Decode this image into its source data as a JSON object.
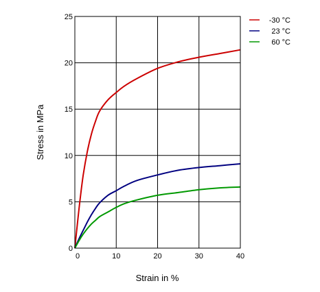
{
  "chart_data": {
    "type": "line",
    "title": "",
    "xlabel": "Strain in %",
    "ylabel": "Stress in MPa",
    "xlim": [
      0,
      40
    ],
    "ylim": [
      0,
      25
    ],
    "xticks": [
      0,
      10,
      20,
      30,
      40
    ],
    "yticks": [
      0,
      5,
      10,
      15,
      20,
      25
    ],
    "xtick_labels": [
      "0",
      "10",
      "20",
      "30",
      "40"
    ],
    "ytick_labels": [
      "0",
      "5",
      "10",
      "15",
      "20",
      "25"
    ],
    "grid": true,
    "legend_position": "top-right, outside plot",
    "series": [
      {
        "name": "-30 °C",
        "color": "#cc0000",
        "x": [
          0,
          1,
          2,
          3,
          4,
          5,
          6,
          8,
          10,
          12,
          15,
          20,
          25,
          30,
          35,
          40
        ],
        "y": [
          0,
          4.2,
          7.8,
          10.4,
          12.3,
          13.7,
          14.8,
          16.0,
          16.8,
          17.5,
          18.3,
          19.4,
          20.1,
          20.6,
          21.0,
          21.4
        ]
      },
      {
        "name": "23 °C",
        "color": "#000080",
        "x": [
          0,
          1,
          2,
          3,
          4,
          5,
          6,
          8,
          10,
          12,
          15,
          20,
          25,
          30,
          35,
          40
        ],
        "y": [
          0,
          1.0,
          1.9,
          2.8,
          3.6,
          4.3,
          4.9,
          5.7,
          6.2,
          6.7,
          7.3,
          7.9,
          8.4,
          8.7,
          8.9,
          9.1
        ]
      },
      {
        "name": "60 °C",
        "color": "#009900",
        "x": [
          0,
          1,
          2,
          3,
          4,
          5,
          6,
          8,
          10,
          12,
          15,
          20,
          25,
          30,
          35,
          40
        ],
        "y": [
          0,
          0.8,
          1.5,
          2.1,
          2.6,
          3.0,
          3.4,
          3.9,
          4.4,
          4.8,
          5.2,
          5.7,
          6.0,
          6.3,
          6.5,
          6.6
        ]
      }
    ]
  }
}
